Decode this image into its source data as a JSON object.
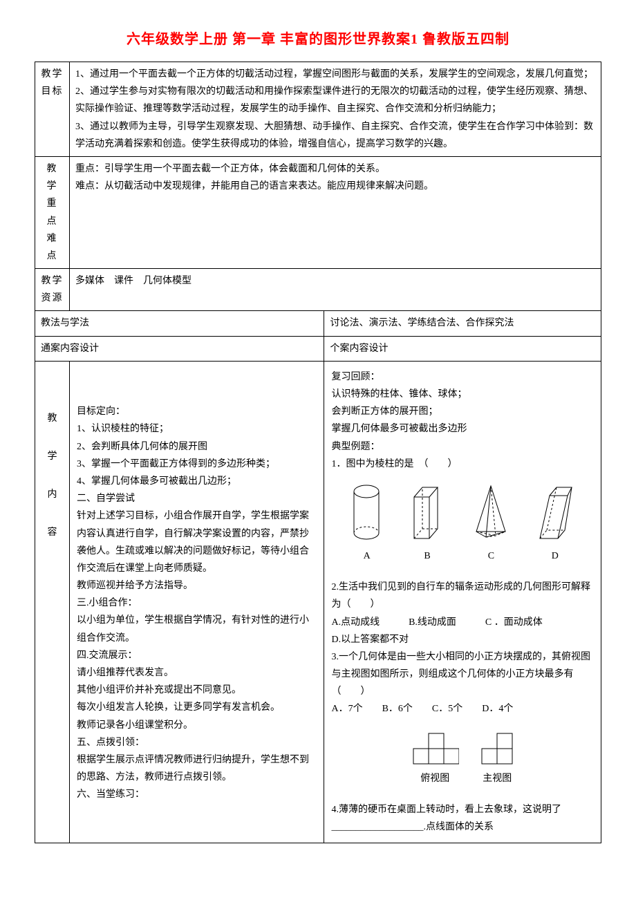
{
  "title": "六年级数学上册 第一章 丰富的图形世界教案1 鲁教版五四制",
  "rows": {
    "goal_label": "教学\n目标",
    "goal_text": "1、通过用一个平面去截一个正方体的切截活动过程，掌握空间图形与截面的关系，发展学生的空间观念，发展几何直觉；\n2、通过学生参与对实物有限次的切截活动和用操作探索型课件进行的无限次的切截活动的过程，使学生经历观察、猜想、实际操作验证、推理等数学活动过程，发展学生的动手操作、自主探究、合作交流和分析归纳能力；\n3、通过以教师为主导，引导学生观察发现、大胆猜想、动手操作、自主探究、合作交流，使学生在合作学习中体验到：数学活动充满着探索和创造。使学生获得成功的体验，增强自信心，提高学习数学的兴趣。",
    "key_label": "教 学\n重 点\n难 点",
    "key_text": "重点：引导学生用一个平面去截一个正方体，体会截面和几何体的关系。\n难点：从切截活动中发现规律，并能用自己的语言来表达。能应用规律来解决问题。",
    "res_label": "教学\n资源",
    "res_text": "多媒体　课件　几何体模型",
    "method_label": "教法与学法",
    "method_text": "讨论法、演示法、学练结合法、合作探究法",
    "general_header": "通案内容设计",
    "individual_header": "个案内容设计",
    "vlabel_chars": [
      "教",
      "学",
      "内",
      "容"
    ],
    "left_pane": "\n目标定向：\n1、认识棱柱的特征；\n2、会判断具体几何体的展开图\n3、掌握一个平面截正方体得到的多边形种类；\n4、掌握几何体最多可被截出几边形；\n二、自学尝试\n针对上述学习目标，小组合作展开自学，学生根据学案内容认真进行自学，自行解决学案设置的内容，严禁抄袭他人。生疏或难以解决的问题做好标记，等待小组合作交流后在课堂上向老师质疑。\n教师巡视并给予方法指导。\n三.小组合作：\n以小组为单位，学生根据自学情况，有针对性的进行小组合作交流。\n四.交流展示：\n请小组推荐代表发言。\n其他小组评价并补充或提出不同意见。\n每次小组发言人轮换，让更多同学有发言机会。\n教师记录各小组课堂积分。\n五、点拨引领：\n根据学生展示点评情况教师进行归纳提升，学生想不到的思路、方法，教师进行点拨引领。\n六、当堂练习：",
    "right_pane": {
      "review_title": "复习回顾：",
      "review_1": "认识特殊的柱体、锥体、球体；",
      "review_2": "会判断正方体的展开图；",
      "review_3": "掌握几何体最多可被截出多边形",
      "examples_title": "典型例题：",
      "q1": "1．图中为棱柱的是　（　　）",
      "shape_labels": [
        "A",
        "B",
        "C",
        "D"
      ],
      "q2": "2.生活中我们见到的自行车的辐条运动形成的几何图形可解释为（　　）",
      "q2_a": "A.点动成线　　　B.线动成面　　　C ．面动成体",
      "q2_d": "D.以上答案都不对",
      "q3": "3.一个几何体是由一些大小相同的小正方块摆成的，其俯视图与主视图如图所示，则组成这个几何体的小正方块最多有（　　）",
      "q3_opts": "A．7个　　B．6个　　C．5个　　D．4个",
      "view_labels": [
        "俯视图",
        "主视图"
      ],
      "q4_prefix": "4.薄薄的硬币在桌面上转动时，看上去象球，这说明了",
      "q4_blank": "___________________",
      "q4_suffix": ".点线面体的关系"
    }
  },
  "colors": {
    "title": "#ff0000",
    "border": "#000000",
    "bg": "#ffffff",
    "text": "#000000",
    "dash": "#000000"
  },
  "svg": {
    "stroke_width": 1,
    "dash": "3,3"
  }
}
